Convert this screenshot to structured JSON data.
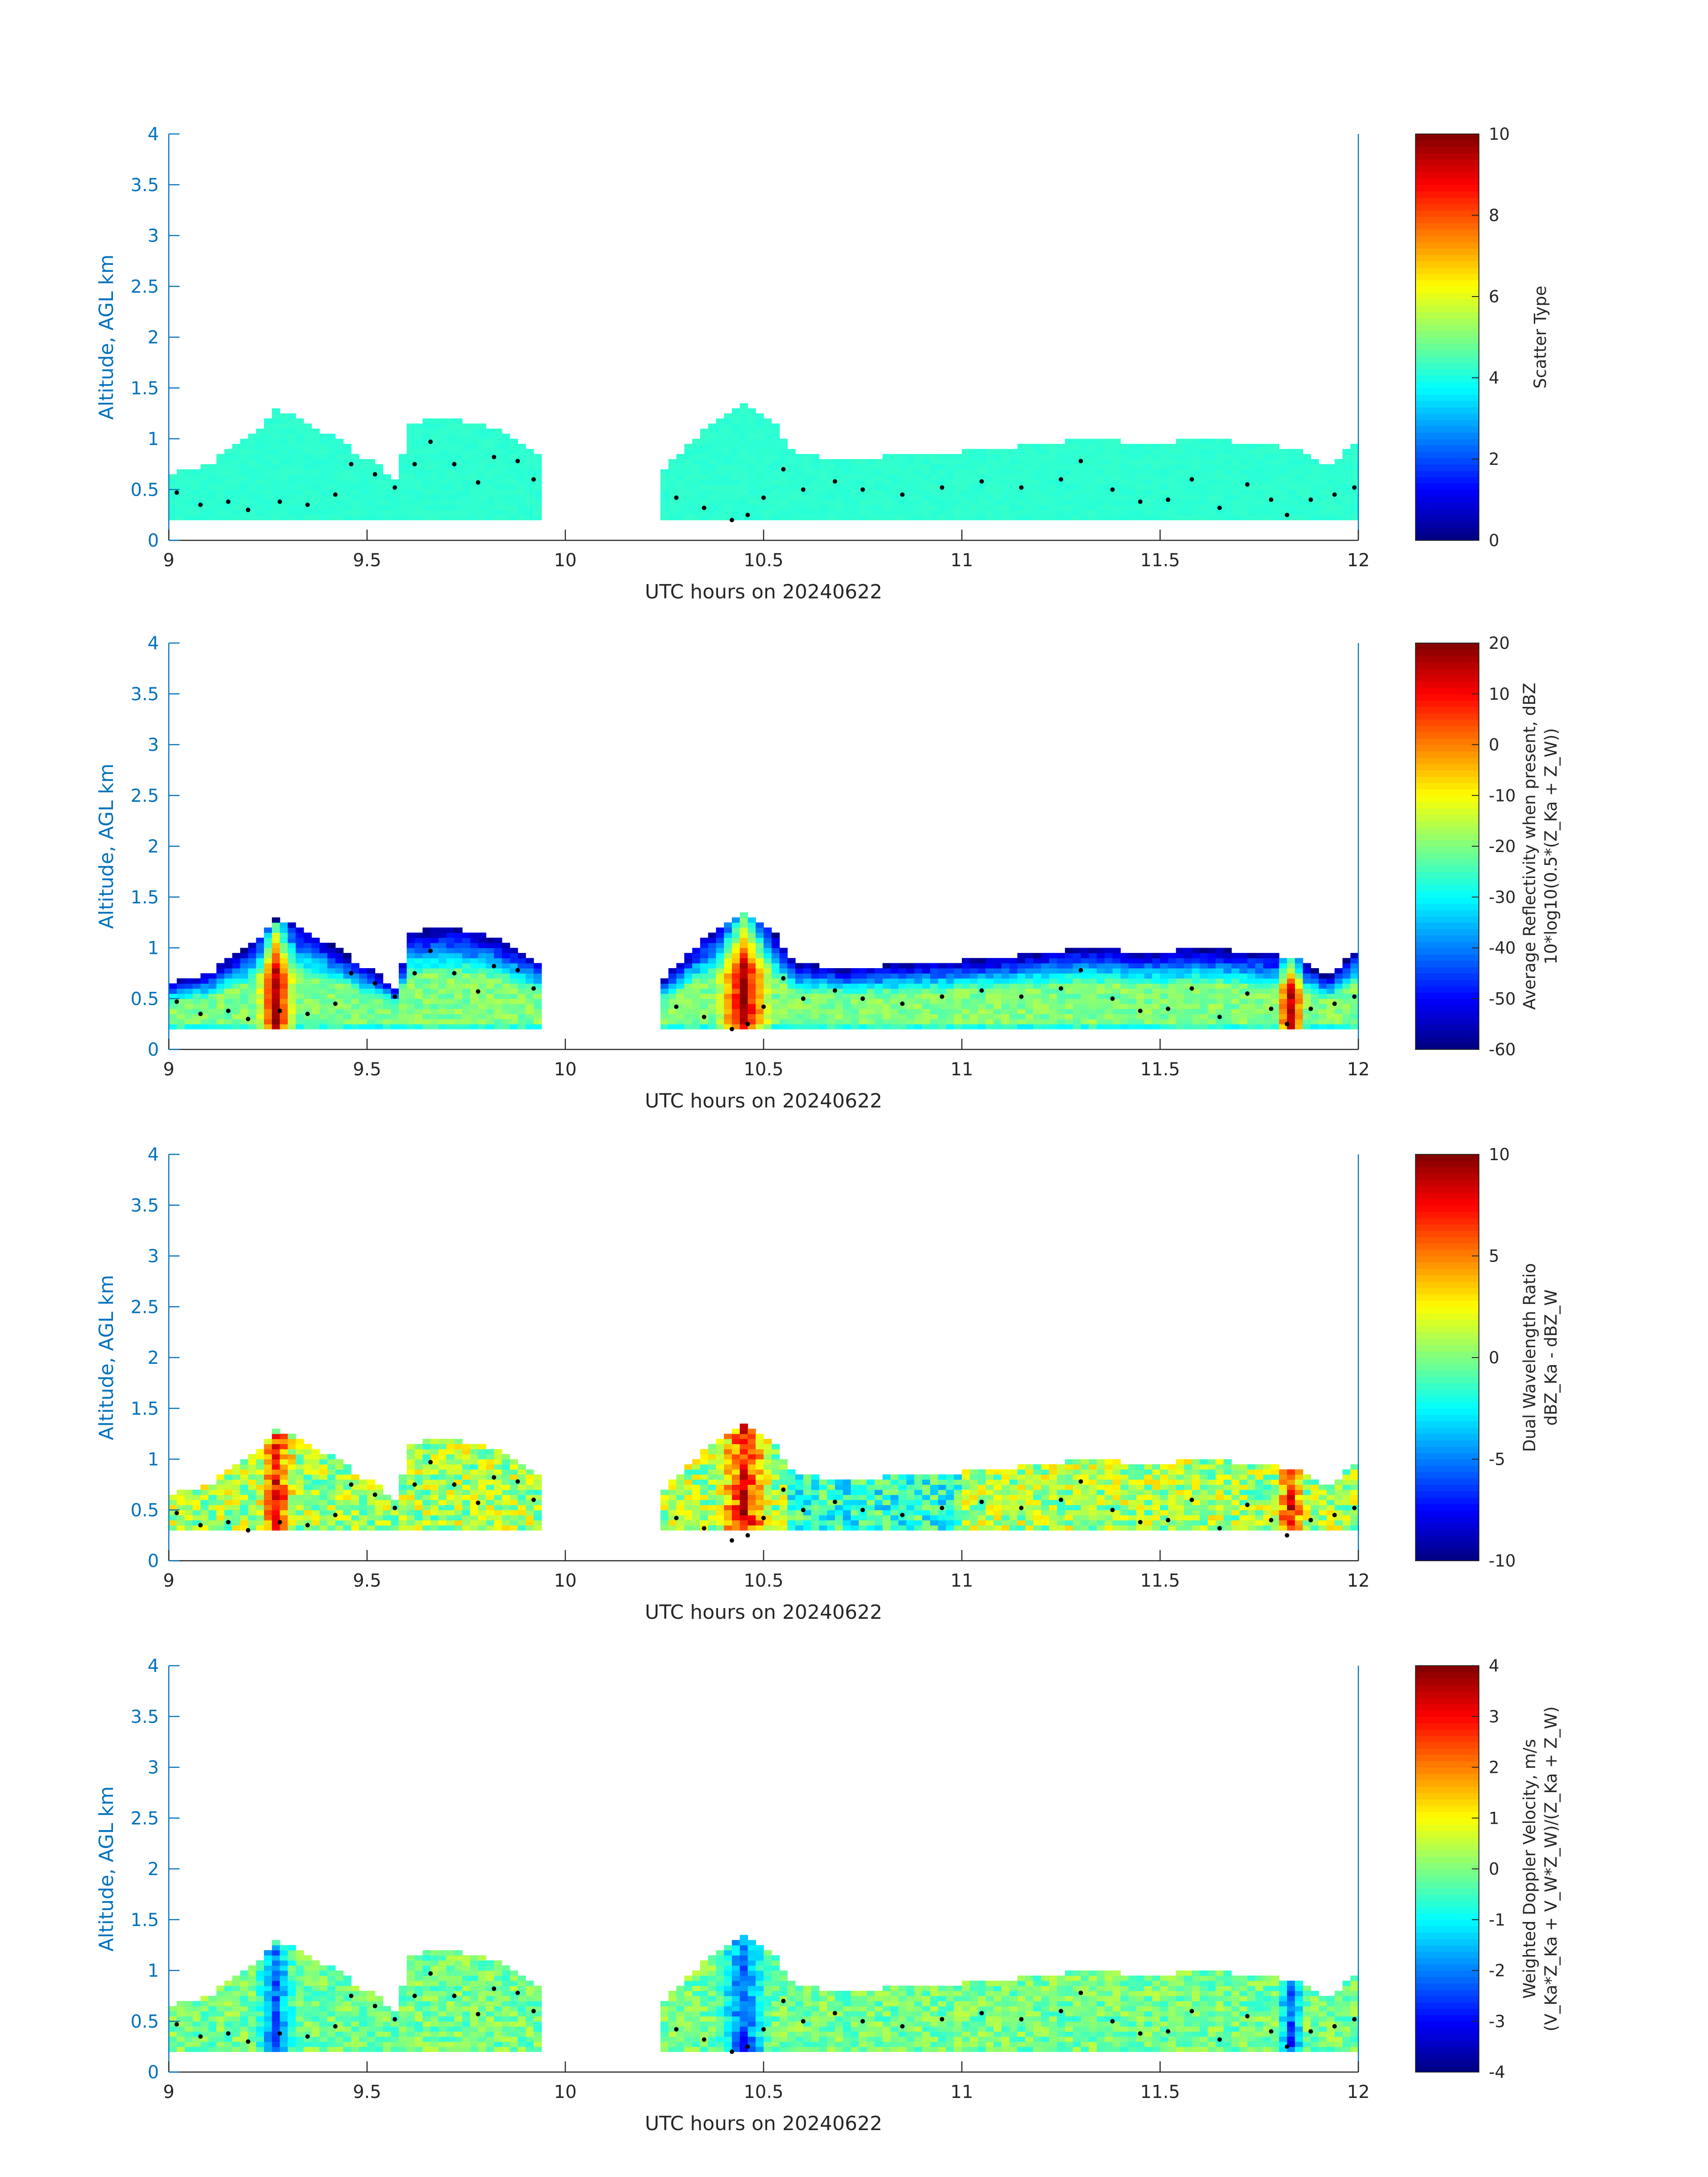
{
  "chart_data": [
    {
      "type": "heatmap",
      "title": "",
      "xlabel": "UTC hours on 20240622",
      "ylabel": "Altitude, AGL km",
      "xlim": [
        9,
        12
      ],
      "ylim": [
        0,
        4
      ],
      "xticks": [
        "9",
        "9.5",
        "10",
        "10.5",
        "11",
        "11.5",
        "12"
      ],
      "yticks": [
        "0",
        "0.5",
        "1",
        "1.5",
        "2",
        "2.5",
        "3",
        "3.5",
        "4"
      ],
      "colorbar": {
        "label_lines": [
          "Scatter Type"
        ],
        "range": [
          0,
          10
        ],
        "ticks": [
          "0",
          "2",
          "4",
          "6",
          "8",
          "10"
        ]
      },
      "colormap": "jet",
      "field": "scatter_type",
      "boundary_layer_dots": true
    },
    {
      "type": "heatmap",
      "title": "",
      "xlabel": "UTC hours on 20240622",
      "ylabel": "Altitude, AGL km",
      "xlim": [
        9,
        12
      ],
      "ylim": [
        0,
        4
      ],
      "xticks": [
        "9",
        "9.5",
        "10",
        "10.5",
        "11",
        "11.5",
        "12"
      ],
      "yticks": [
        "0",
        "0.5",
        "1",
        "1.5",
        "2",
        "2.5",
        "3",
        "3.5",
        "4"
      ],
      "colorbar": {
        "label_lines": [
          "Average Reflectivity when present, dBZ",
          "10*log10(0.5*(Z_Ka + Z_W))"
        ],
        "range": [
          -60,
          20
        ],
        "ticks": [
          "-60",
          "-50",
          "-40",
          "-30",
          "-20",
          "-10",
          "0",
          "10",
          "20"
        ]
      },
      "colormap": "jet",
      "field": "reflectivity",
      "boundary_layer_dots": true
    },
    {
      "type": "heatmap",
      "title": "",
      "xlabel": "UTC hours on 20240622",
      "ylabel": "Altitude, AGL km",
      "xlim": [
        9,
        12
      ],
      "ylim": [
        0,
        4
      ],
      "xticks": [
        "9",
        "9.5",
        "10",
        "10.5",
        "11",
        "11.5",
        "12"
      ],
      "yticks": [
        "0",
        "0.5",
        "1",
        "1.5",
        "2",
        "2.5",
        "3",
        "3.5",
        "4"
      ],
      "colorbar": {
        "label_lines": [
          "Dual Wavelength Ratio",
          "dBZ_Ka - dBZ_W"
        ],
        "range": [
          -10,
          10
        ],
        "ticks": [
          "-10",
          "-5",
          "0",
          "5",
          "10"
        ]
      },
      "colormap": "jet",
      "field": "dwr",
      "boundary_layer_dots": true
    },
    {
      "type": "heatmap",
      "title": "",
      "xlabel": "UTC hours on 20240622",
      "ylabel": "Altitude, AGL km",
      "xlim": [
        9,
        12
      ],
      "ylim": [
        0,
        4
      ],
      "xticks": [
        "9",
        "9.5",
        "10",
        "10.5",
        "11",
        "11.5",
        "12"
      ],
      "yticks": [
        "0",
        "0.5",
        "1",
        "1.5",
        "2",
        "2.5",
        "3",
        "3.5",
        "4"
      ],
      "colorbar": {
        "label_lines": [
          "Weighted Doppler Velocity, m/s",
          "(V_Ka*Z_Ka + V_W*Z_W)/(Z_Ka + Z_W)"
        ],
        "range": [
          -4,
          4
        ],
        "ticks": [
          "-4",
          "-3",
          "-2",
          "-1",
          "0",
          "1",
          "2",
          "3",
          "4"
        ]
      },
      "colormap": "jet",
      "field": "velocity",
      "boundary_layer_dots": true
    }
  ],
  "cloud_segments": [
    {
      "start": 9.0,
      "end": 9.94,
      "base": 0.2
    },
    {
      "start": 10.25,
      "end": 12.0,
      "base": 0.2
    }
  ],
  "cloud_top_profile": [
    {
      "x": 9.0,
      "top": 0.65
    },
    {
      "x": 9.1,
      "top": 0.75
    },
    {
      "x": 9.2,
      "top": 1.0
    },
    {
      "x": 9.27,
      "top": 1.28
    },
    {
      "x": 9.33,
      "top": 1.2
    },
    {
      "x": 9.4,
      "top": 1.05
    },
    {
      "x": 9.46,
      "top": 0.9
    },
    {
      "x": 9.52,
      "top": 0.75
    },
    {
      "x": 9.58,
      "top": 0.6
    },
    {
      "x": 9.6,
      "top": 1.15
    },
    {
      "x": 9.7,
      "top": 1.2
    },
    {
      "x": 9.78,
      "top": 1.15
    },
    {
      "x": 9.85,
      "top": 1.05
    },
    {
      "x": 9.94,
      "top": 0.85
    },
    {
      "x": 10.25,
      "top": 0.7
    },
    {
      "x": 10.35,
      "top": 1.1
    },
    {
      "x": 10.45,
      "top": 1.35
    },
    {
      "x": 10.52,
      "top": 1.2
    },
    {
      "x": 10.58,
      "top": 0.85
    },
    {
      "x": 10.7,
      "top": 0.8
    },
    {
      "x": 10.9,
      "top": 0.85
    },
    {
      "x": 11.1,
      "top": 0.9
    },
    {
      "x": 11.3,
      "top": 1.0
    },
    {
      "x": 11.5,
      "top": 0.95
    },
    {
      "x": 11.6,
      "top": 1.0
    },
    {
      "x": 11.75,
      "top": 0.95
    },
    {
      "x": 11.85,
      "top": 0.9
    },
    {
      "x": 11.92,
      "top": 0.7
    },
    {
      "x": 12.0,
      "top": 1.0
    }
  ],
  "boundary_layer_height": [
    {
      "x": 9.02,
      "y": 0.47
    },
    {
      "x": 9.08,
      "y": 0.35
    },
    {
      "x": 9.15,
      "y": 0.38
    },
    {
      "x": 9.2,
      "y": 0.3
    },
    {
      "x": 9.28,
      "y": 0.38
    },
    {
      "x": 9.35,
      "y": 0.35
    },
    {
      "x": 9.42,
      "y": 0.45
    },
    {
      "x": 9.46,
      "y": 0.75
    },
    {
      "x": 9.52,
      "y": 0.65
    },
    {
      "x": 9.57,
      "y": 0.52
    },
    {
      "x": 9.62,
      "y": 0.75
    },
    {
      "x": 9.66,
      "y": 0.97
    },
    {
      "x": 9.72,
      "y": 0.75
    },
    {
      "x": 9.78,
      "y": 0.57
    },
    {
      "x": 9.82,
      "y": 0.82
    },
    {
      "x": 9.88,
      "y": 0.78
    },
    {
      "x": 9.92,
      "y": 0.6
    },
    {
      "x": 10.28,
      "y": 0.42
    },
    {
      "x": 10.35,
      "y": 0.32
    },
    {
      "x": 10.42,
      "y": 0.2
    },
    {
      "x": 10.46,
      "y": 0.25
    },
    {
      "x": 10.5,
      "y": 0.42
    },
    {
      "x": 10.55,
      "y": 0.7
    },
    {
      "x": 10.6,
      "y": 0.5
    },
    {
      "x": 10.68,
      "y": 0.58
    },
    {
      "x": 10.75,
      "y": 0.5
    },
    {
      "x": 10.85,
      "y": 0.45
    },
    {
      "x": 10.95,
      "y": 0.52
    },
    {
      "x": 11.05,
      "y": 0.58
    },
    {
      "x": 11.15,
      "y": 0.52
    },
    {
      "x": 11.25,
      "y": 0.6
    },
    {
      "x": 11.3,
      "y": 0.78
    },
    {
      "x": 11.38,
      "y": 0.5
    },
    {
      "x": 11.45,
      "y": 0.38
    },
    {
      "x": 11.52,
      "y": 0.4
    },
    {
      "x": 11.58,
      "y": 0.6
    },
    {
      "x": 11.65,
      "y": 0.32
    },
    {
      "x": 11.72,
      "y": 0.55
    },
    {
      "x": 11.78,
      "y": 0.4
    },
    {
      "x": 11.82,
      "y": 0.25
    },
    {
      "x": 11.88,
      "y": 0.4
    },
    {
      "x": 11.94,
      "y": 0.45
    },
    {
      "x": 11.99,
      "y": 0.52
    }
  ],
  "convective_cores": [
    {
      "x": 9.27,
      "ymax": 1.25,
      "width": 0.05
    },
    {
      "x": 10.45,
      "ymax": 1.35,
      "width": 0.07
    },
    {
      "x": 11.83,
      "ymax": 0.9,
      "width": 0.04
    }
  ]
}
